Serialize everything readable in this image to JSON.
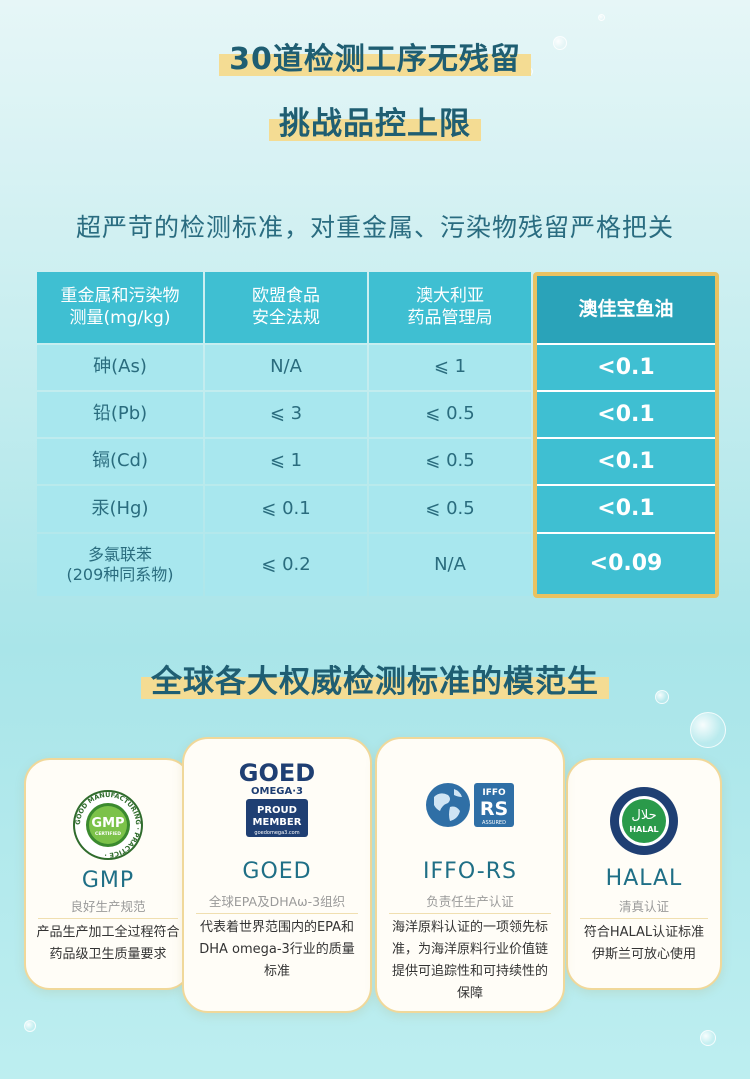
{
  "headline": {
    "line1": "30道检测工序无残留",
    "line2": "挑战品控上限",
    "subtitle": "超严苛的检测标准，对重金属、污染物残留严格把关"
  },
  "table": {
    "header": {
      "col1": "重金属和污染物\n测量(mg/kg)",
      "col2": "欧盟食品\n安全法规",
      "col3": "澳大利亚\n药品管理局",
      "col4": "澳佳宝鱼油"
    },
    "rows": [
      {
        "name": "砷(As)",
        "eu": "N/A",
        "au": "⩽ 1",
        "product": "<0.1"
      },
      {
        "name": "铅(Pb)",
        "eu": "⩽ 3",
        "au": "⩽ 0.5",
        "product": "<0.1"
      },
      {
        "name": "镉(Cd)",
        "eu": "⩽ 1",
        "au": "⩽ 0.5",
        "product": "<0.1"
      },
      {
        "name": "汞(Hg)",
        "eu": "⩽ 0.1",
        "au": "⩽ 0.5",
        "product": "<0.1"
      },
      {
        "name": "多氯联苯\n(209种同系物)",
        "eu": "⩽ 0.2",
        "au": "N/A",
        "product": "<0.09"
      }
    ]
  },
  "section2": {
    "title": "全球各大权威检测标准的模范生"
  },
  "cards": [
    {
      "name": "GMP",
      "tag": "良好生产规范",
      "desc": "产品生产加工全过程符合药品级卫生质量要求",
      "logo": {
        "icon": "gmp-badge-icon",
        "ring_text": "GOOD MANUFACTURING · PRACTICE ·",
        "center": "GMP",
        "sub": "CERTIFIED"
      }
    },
    {
      "name": "GOED",
      "tag": "全球EPA及DHAω-3组织",
      "desc": "代表着世界范围内的EPA和DHA omega-3行业的质量标准",
      "logo": {
        "icon": "goed-logo-icon",
        "line1": "GOED",
        "line2": "OMEGA·3",
        "line3": "PROUD",
        "line4": "MEMBER",
        "line5": "goedomega3.com"
      }
    },
    {
      "name": "IFFO-RS",
      "tag": "负责任生产认证",
      "desc": "海洋原料认证的一项领先标准，为海洋原料行业价值链提供可追踪性和可持续性的保障",
      "logo": {
        "icon": "iffo-rs-logo-icon",
        "line1": "IFFO",
        "line2": "RS",
        "line3": "ASSURED"
      }
    },
    {
      "name": "HALAL",
      "tag": "清真认证",
      "desc": "符合HALAL认证标准伊斯兰可放心使用",
      "logo": {
        "icon": "halal-badge-icon",
        "center": "HALAL",
        "script": "حلال"
      }
    }
  ],
  "colors": {
    "title": "#1f5e72",
    "highlight": "#f4dc93",
    "header": "#3fbfd2",
    "body_cell": "#a8e7ee",
    "product_header": "#2aa3b9",
    "gold_border": "#e9c261"
  }
}
